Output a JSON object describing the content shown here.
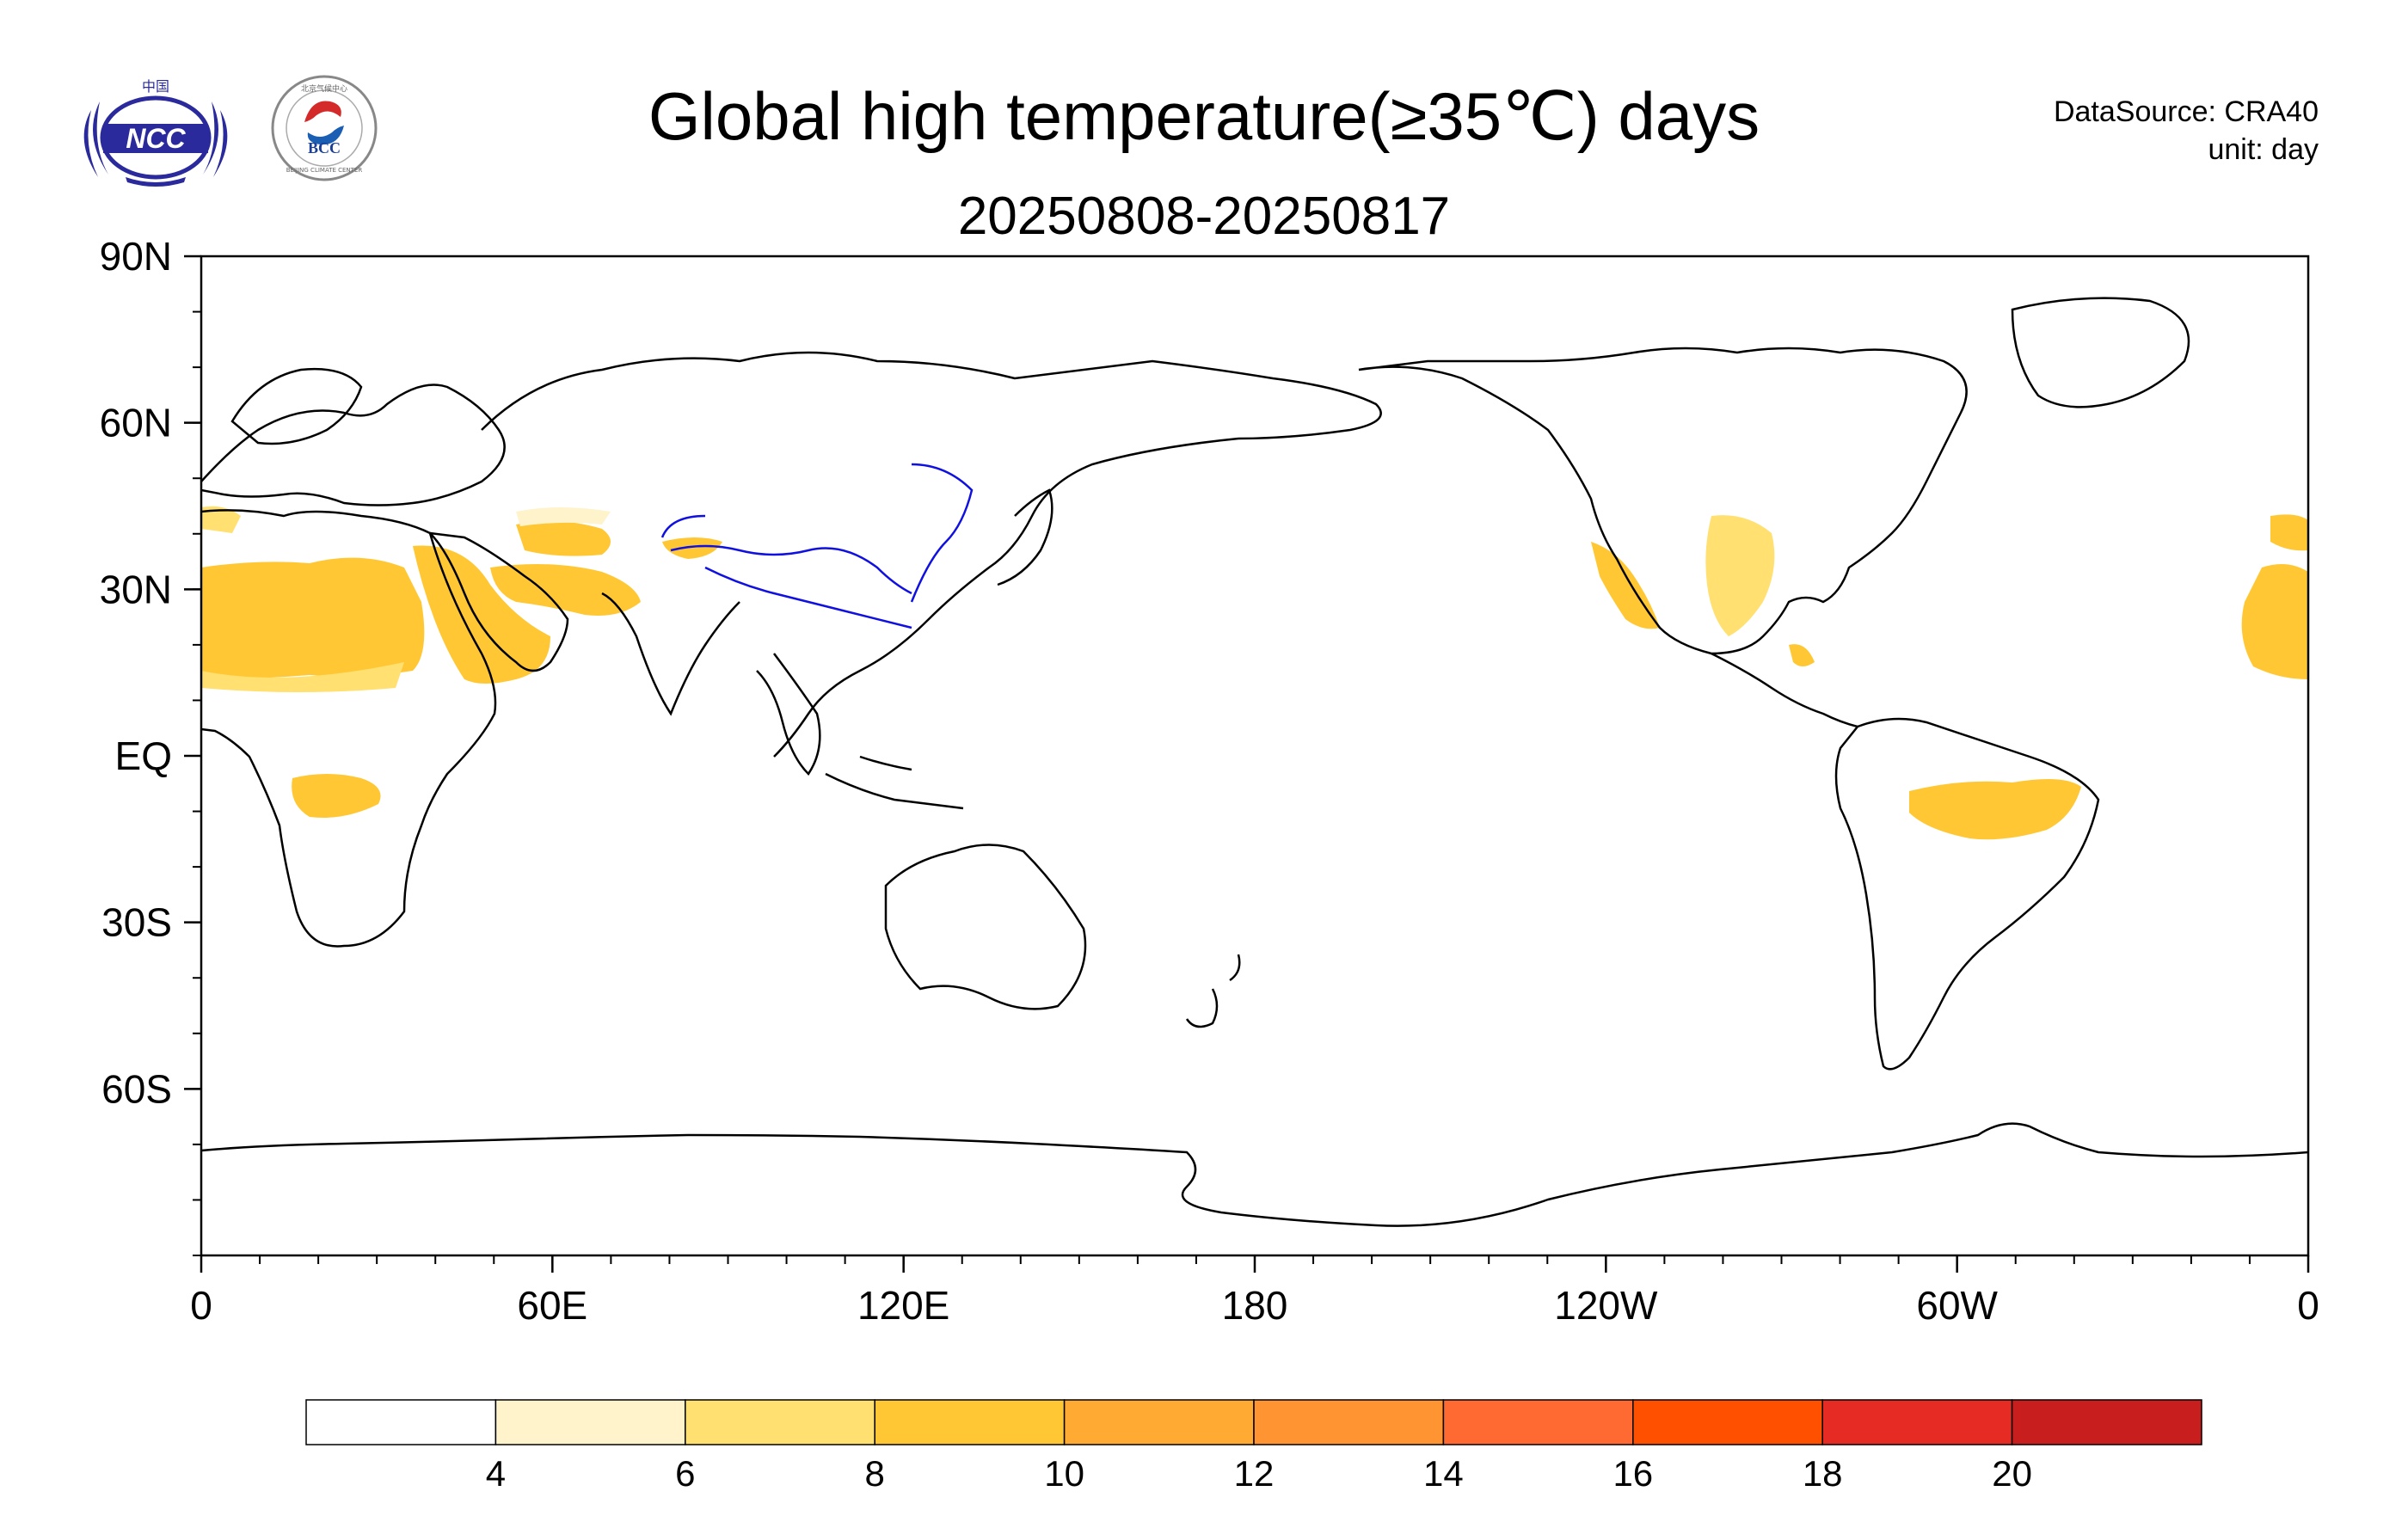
{
  "header": {
    "title": "Global high temperature(≥35℃) days",
    "subtitle": "20250808-20250817",
    "source_line": "DataSource: CRA40",
    "unit_line": "unit: day"
  },
  "logos": {
    "ncc_text": "NCC",
    "ncc_cn_text": "中国",
    "bcc_text": "BCC",
    "bcc_ring_text": "北京气候中心",
    "bcc_bottom_text": "BEIJING CLIMATE CENTER"
  },
  "map": {
    "lat_labels": [
      "90N",
      "60N",
      "30N",
      "EQ",
      "30S",
      "60S"
    ],
    "lat_values": [
      90,
      60,
      30,
      0,
      -30,
      -60
    ],
    "lon_labels": [
      "0",
      "60E",
      "120E",
      "180",
      "120W",
      "60W",
      "0"
    ],
    "lon_values": [
      0,
      60,
      120,
      180,
      240,
      300,
      360
    ],
    "coastline_color": "#000000",
    "river_color": "#1010e0"
  },
  "colorbar": {
    "labels": [
      "4",
      "6",
      "8",
      "10",
      "12",
      "14",
      "16",
      "18",
      "20"
    ],
    "colors": [
      "#ffffff",
      "#fff3cc",
      "#ffe070",
      "#ffc733",
      "#ffab33",
      "#ff9433",
      "#ff6a33",
      "#ff5000",
      "#e62a24",
      "#c81e1e"
    ]
  }
}
